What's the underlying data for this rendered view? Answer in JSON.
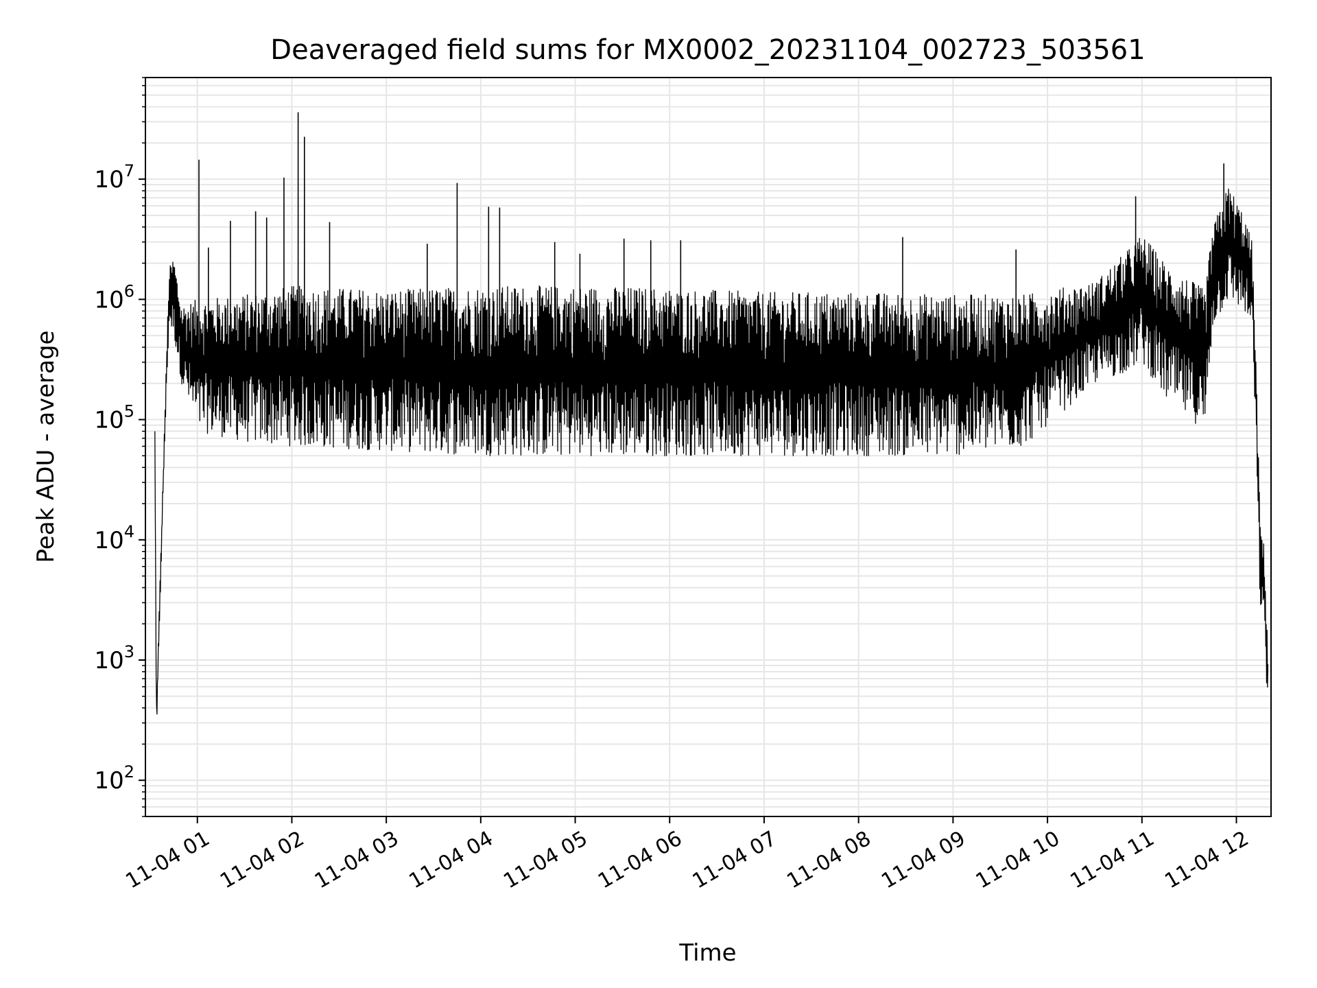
{
  "chart_data": {
    "type": "line",
    "title": "Deaveraged field sums for MX0002_20231104_002723_503561",
    "xlabel": "Time",
    "ylabel": "Peak ADU - average",
    "yscale": "log",
    "ylim": [
      50,
      70000000
    ],
    "xlim": [
      "2023-11-04 00:27",
      "2023-11-04 12:22"
    ],
    "grid": "on (major and minor)",
    "line_color": "#000000",
    "grid_color": "#e6e6e6",
    "x_ticks": [
      {
        "time": "2023-11-04 01:00",
        "label": "11-04 01"
      },
      {
        "time": "2023-11-04 02:00",
        "label": "11-04 02"
      },
      {
        "time": "2023-11-04 03:00",
        "label": "11-04 03"
      },
      {
        "time": "2023-11-04 04:00",
        "label": "11-04 04"
      },
      {
        "time": "2023-11-04 05:00",
        "label": "11-04 05"
      },
      {
        "time": "2023-11-04 06:00",
        "label": "11-04 06"
      },
      {
        "time": "2023-11-04 07:00",
        "label": "11-04 07"
      },
      {
        "time": "2023-11-04 08:00",
        "label": "11-04 08"
      },
      {
        "time": "2023-11-04 09:00",
        "label": "11-04 09"
      },
      {
        "time": "2023-11-04 10:00",
        "label": "11-04 10"
      },
      {
        "time": "2023-11-04 11:00",
        "label": "11-04 11"
      },
      {
        "time": "2023-11-04 12:00",
        "label": "11-04 12"
      }
    ],
    "y_ticks": [
      {
        "value": 100,
        "base": "10",
        "exp": "2"
      },
      {
        "value": 1000,
        "base": "10",
        "exp": "3"
      },
      {
        "value": 10000,
        "base": "10",
        "exp": "4"
      },
      {
        "value": 100000,
        "base": "10",
        "exp": "5"
      },
      {
        "value": 1000000,
        "base": "10",
        "exp": "6"
      },
      {
        "value": 10000000,
        "base": "10",
        "exp": "7"
      }
    ],
    "series": [
      {
        "envelope": [
          {
            "time": "2023-11-04 00:33",
            "low": 80000,
            "high": 80000
          },
          {
            "time": "2023-11-04 00:34",
            "low": 190,
            "high": 400
          },
          {
            "time": "2023-11-04 00:36",
            "low": 2000,
            "high": 3600
          },
          {
            "time": "2023-11-04 00:39",
            "low": 50000,
            "high": 80000
          },
          {
            "time": "2023-11-04 00:42",
            "low": 600000,
            "high": 1800000
          },
          {
            "time": "2023-11-04 00:45",
            "low": 500000,
            "high": 2300000
          },
          {
            "time": "2023-11-04 00:50",
            "low": 200000,
            "high": 900000
          },
          {
            "time": "2023-11-04 01:00",
            "low": 80000,
            "high": 1000000
          },
          {
            "time": "2023-11-04 01:30",
            "low": 65000,
            "high": 1100000
          },
          {
            "time": "2023-11-04 02:00",
            "low": 60000,
            "high": 1300000
          },
          {
            "time": "2023-11-04 03:00",
            "low": 55000,
            "high": 1200000
          },
          {
            "time": "2023-11-04 04:00",
            "low": 50000,
            "high": 1300000
          },
          {
            "time": "2023-11-04 05:00",
            "low": 50000,
            "high": 1300000
          },
          {
            "time": "2023-11-04 06:00",
            "low": 50000,
            "high": 1250000
          },
          {
            "time": "2023-11-04 07:00",
            "low": 50000,
            "high": 1150000
          },
          {
            "time": "2023-11-04 08:00",
            "low": 50000,
            "high": 1150000
          },
          {
            "time": "2023-11-04 09:00",
            "low": 50000,
            "high": 1100000
          },
          {
            "time": "2023-11-04 09:45",
            "low": 60000,
            "high": 1100000
          },
          {
            "time": "2023-11-04 10:30",
            "low": 200000,
            "high": 1400000
          },
          {
            "time": "2023-11-04 10:50",
            "low": 250000,
            "high": 2500000
          },
          {
            "time": "2023-11-04 11:00",
            "low": 300000,
            "high": 3500000
          },
          {
            "time": "2023-11-04 11:15",
            "low": 150000,
            "high": 2000000
          },
          {
            "time": "2023-11-04 11:40",
            "low": 80000,
            "high": 1200000
          },
          {
            "time": "2023-11-04 11:45",
            "low": 600000,
            "high": 4000000
          },
          {
            "time": "2023-11-04 11:55",
            "low": 1000000,
            "high": 9000000
          },
          {
            "time": "2023-11-04 12:05",
            "low": 800000,
            "high": 5000000
          },
          {
            "time": "2023-11-04 12:10",
            "low": 500000,
            "high": 3000000
          },
          {
            "time": "2023-11-04 12:12",
            "low": 100000,
            "high": 500000
          },
          {
            "time": "2023-11-04 12:15",
            "low": 3000,
            "high": 16000
          },
          {
            "time": "2023-11-04 12:18",
            "low": 1500,
            "high": 8000
          },
          {
            "time": "2023-11-04 12:20",
            "low": 330,
            "high": 1200
          }
        ],
        "spikes": [
          {
            "time": "2023-11-04 01:01",
            "value": 14500000
          },
          {
            "time": "2023-11-04 01:07",
            "value": 2700000
          },
          {
            "time": "2023-11-04 01:21",
            "value": 4500000
          },
          {
            "time": "2023-11-04 01:37",
            "value": 5400000
          },
          {
            "time": "2023-11-04 01:44",
            "value": 4800000
          },
          {
            "time": "2023-11-04 01:55",
            "value": 10300000
          },
          {
            "time": "2023-11-04 02:04",
            "value": 36000000
          },
          {
            "time": "2023-11-04 02:08",
            "value": 22500000
          },
          {
            "time": "2023-11-04 02:24",
            "value": 4400000
          },
          {
            "time": "2023-11-04 03:26",
            "value": 2900000
          },
          {
            "time": "2023-11-04 03:45",
            "value": 9300000
          },
          {
            "time": "2023-11-04 04:05",
            "value": 5900000
          },
          {
            "time": "2023-11-04 04:12",
            "value": 5800000
          },
          {
            "time": "2023-11-04 04:47",
            "value": 3000000
          },
          {
            "time": "2023-11-04 05:03",
            "value": 2400000
          },
          {
            "time": "2023-11-04 05:31",
            "value": 3200000
          },
          {
            "time": "2023-11-04 05:48",
            "value": 3100000
          },
          {
            "time": "2023-11-04 06:07",
            "value": 3100000
          },
          {
            "time": "2023-11-04 08:28",
            "value": 3300000
          },
          {
            "time": "2023-11-04 09:40",
            "value": 2600000
          },
          {
            "time": "2023-11-04 10:56",
            "value": 7200000
          },
          {
            "time": "2023-11-04 11:52",
            "value": 13500000
          }
        ]
      }
    ]
  }
}
